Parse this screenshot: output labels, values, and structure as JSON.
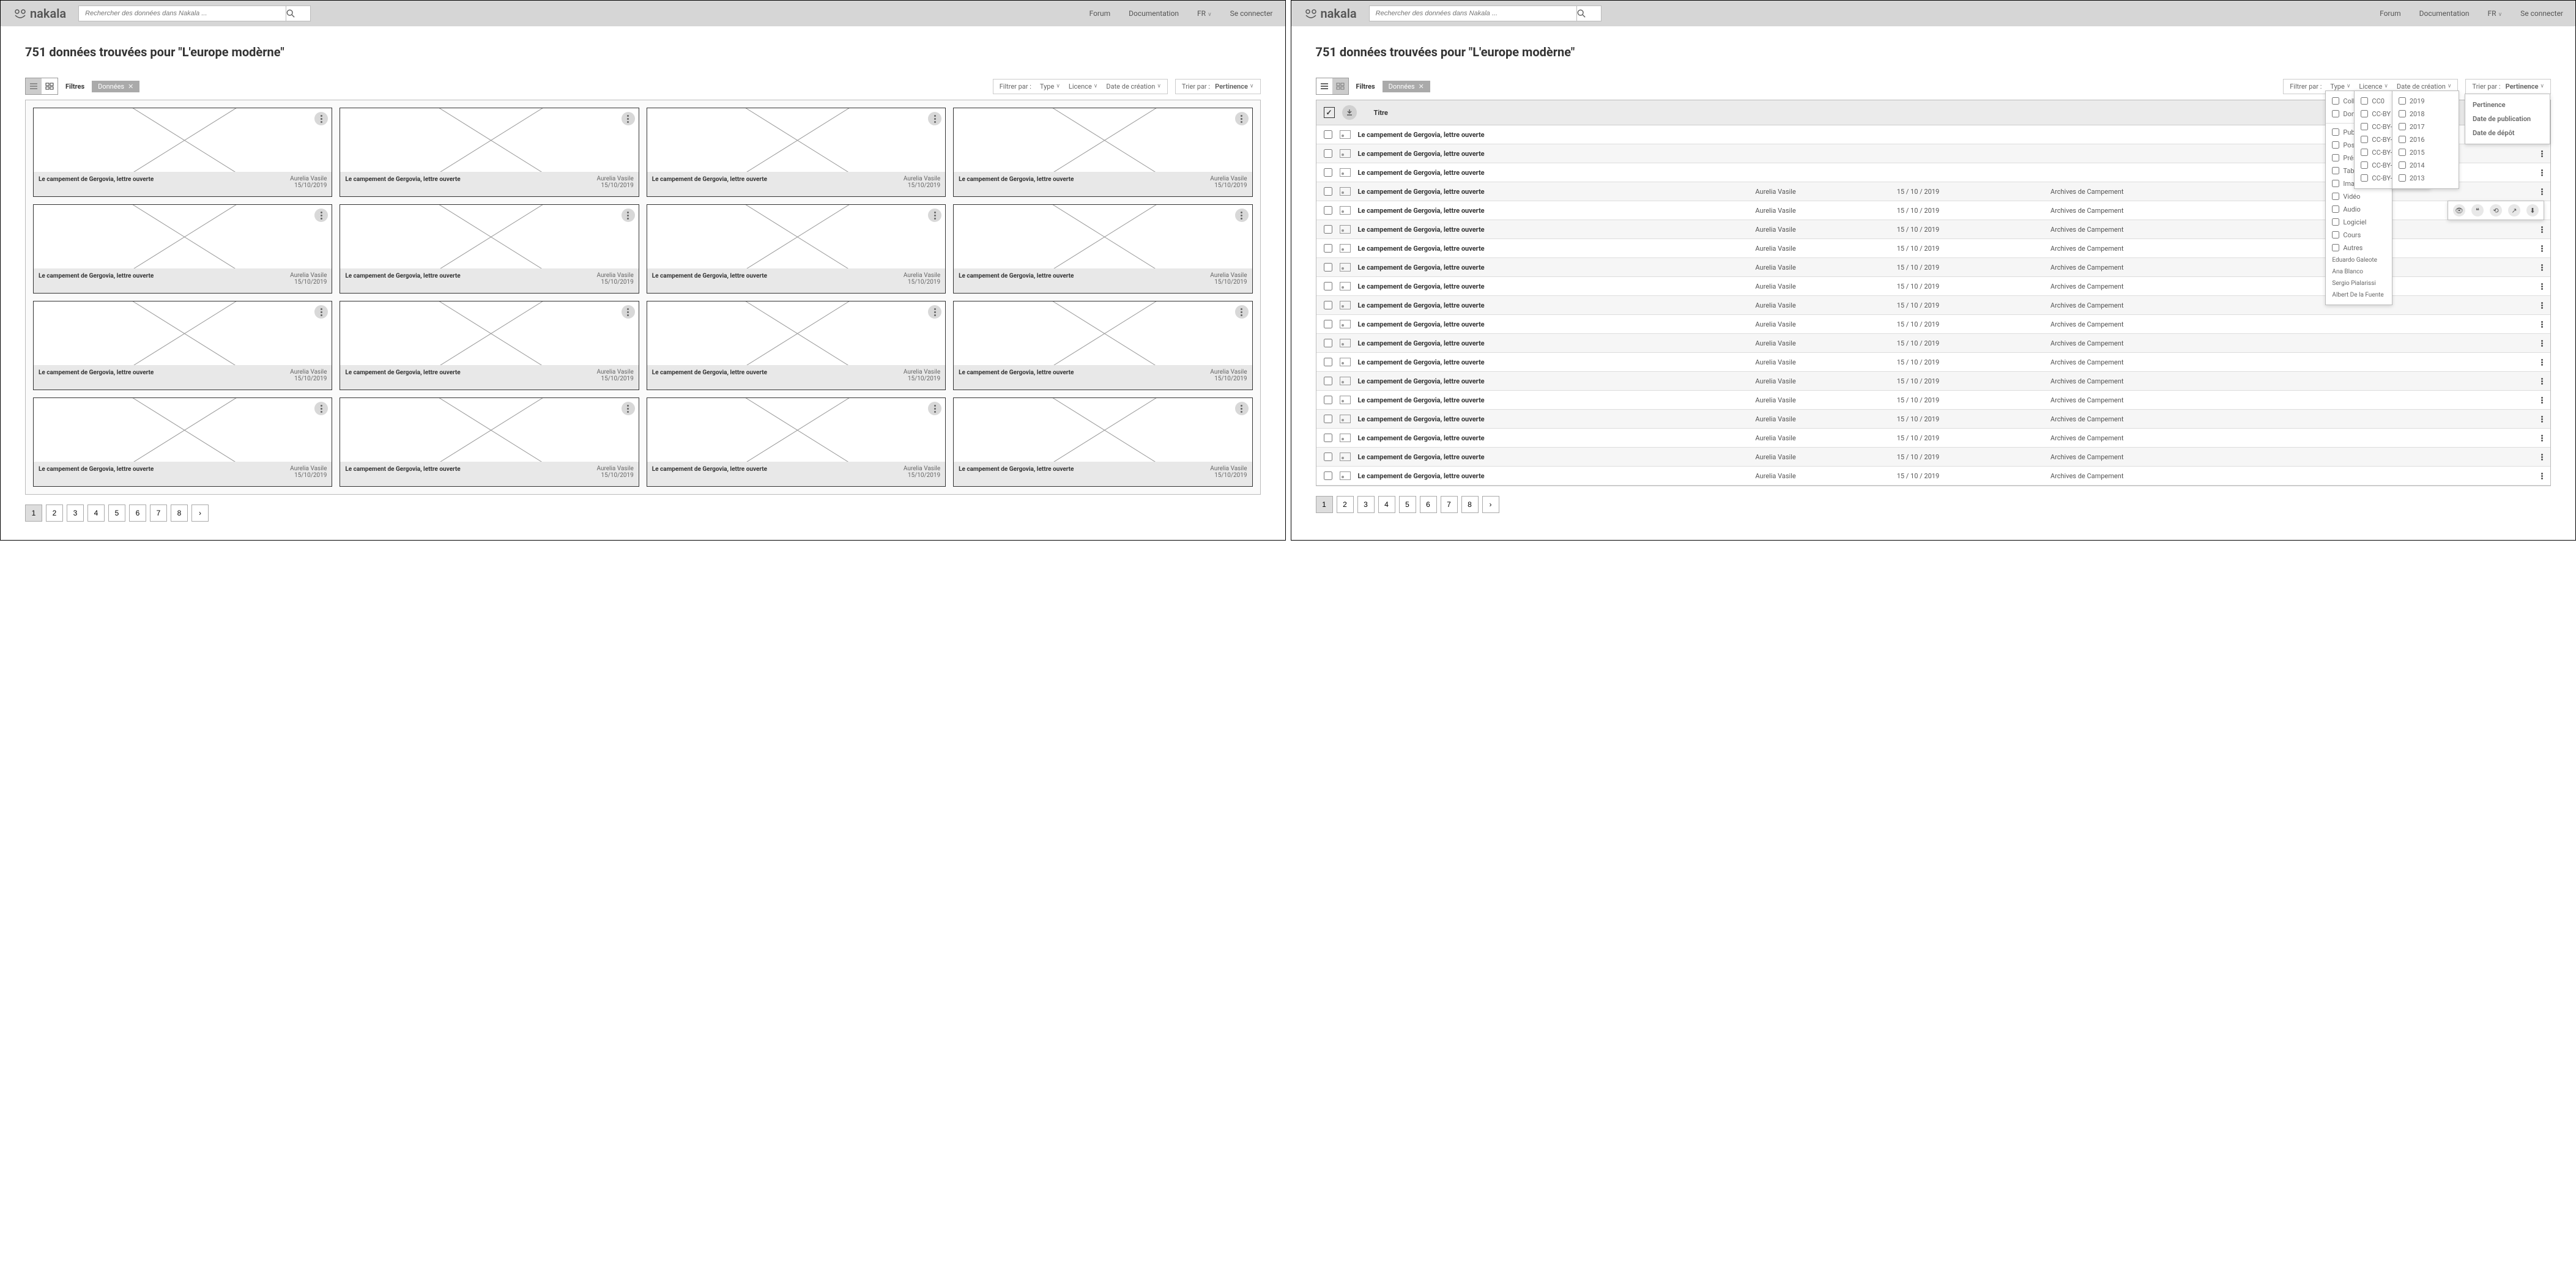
{
  "header": {
    "brand": "nakala",
    "search_placeholder": "Rechercher des données dans Nakala ...",
    "nav": {
      "forum": "Forum",
      "docs": "Documentation",
      "lang": "FR",
      "login": "Se connecter"
    }
  },
  "results": {
    "title": "751 données trouvées pour \"L'europe modèrne\""
  },
  "toolbar": {
    "filters_label": "Filtres",
    "chip_label": "Données",
    "filter_by": "Filtrer par :",
    "filter_type": "Type",
    "filter_licence": "Licence",
    "filter_date": "Date de création",
    "sort_by": "Trier par :",
    "sort_value": "Pertinence"
  },
  "list_header": {
    "title_col": "Titre"
  },
  "card": {
    "title": "Le campement de Gergovia, lettre ouverte",
    "author": "Aurelia Vasile",
    "date": "15/10/2019"
  },
  "row": {
    "title": "Le campement de Gergovia, lettre ouverte",
    "author": "Aurelia Vasile",
    "date": "15 / 10 / 2019",
    "archive": "Archives de Campement"
  },
  "popover_type": {
    "group1": [
      "Collection",
      "Donnée"
    ],
    "group2": [
      "Publication",
      "Poster",
      "Présentation",
      "Tableau",
      "Image",
      "Vidéo",
      "Audio",
      "Logiciel",
      "Cours",
      "Autres"
    ],
    "extras": [
      "Eduardo Galeote",
      "Ana Blanco",
      "Sergio Pialarissi",
      "Albert De la Fuente"
    ]
  },
  "popover_licence": [
    "CC0",
    "CC-BY 4.0",
    "CC-BY-SA 4.0",
    "CC-BY-ND 4.0",
    "CC-BY-NC 4.0",
    "CC-BY-NC-SA 4.0",
    "CC-BY-NC-ND 4.0"
  ],
  "popover_years": [
    "2019",
    "2018",
    "2017",
    "2016",
    "2015",
    "2014",
    "2013"
  ],
  "popover_sort": [
    "Pertinence",
    "Date de publication",
    "Date de dépôt"
  ],
  "pages": [
    1,
    2,
    3,
    4,
    5,
    6,
    7,
    8
  ],
  "grid_count": 16,
  "list_count": 19,
  "colors": {
    "header_bg": "#d6d6d6",
    "chip_bg": "#aaaaaa",
    "border": "#bbbbbb",
    "card_foot_bg": "#e8e8e8"
  }
}
